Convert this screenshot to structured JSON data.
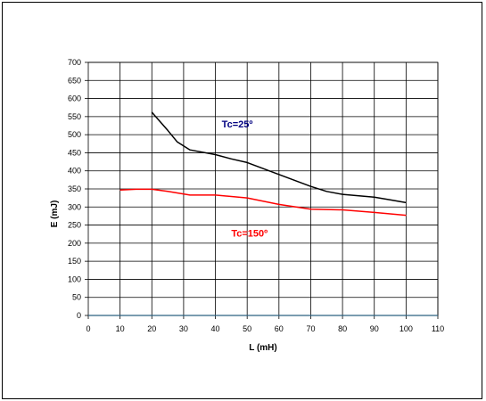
{
  "chart_data": {
    "type": "line",
    "xlabel": "L (mH)",
    "ylabel": "E (mJ)",
    "xlim": [
      0,
      110
    ],
    "ylim": [
      0,
      700
    ],
    "xticks": [
      0,
      10,
      20,
      30,
      40,
      50,
      60,
      70,
      80,
      90,
      100,
      110
    ],
    "yticks": [
      0,
      50,
      100,
      150,
      200,
      250,
      300,
      350,
      400,
      450,
      500,
      550,
      600,
      650,
      700
    ],
    "grid": true,
    "legend": "none",
    "series": [
      {
        "name": "Tc=25º",
        "color": "#000000",
        "x": [
          20,
          25,
          28,
          32,
          40,
          45,
          50,
          60,
          70,
          75,
          80,
          90,
          95,
          100
        ],
        "y": [
          562,
          512,
          480,
          458,
          445,
          433,
          423,
          390,
          357,
          343,
          335,
          327,
          320,
          312
        ]
      },
      {
        "name": "Tc=150º",
        "color": "#ff0000",
        "x": [
          10,
          15,
          20,
          25,
          32,
          40,
          50,
          60,
          70,
          80,
          90,
          100
        ],
        "y": [
          347,
          349,
          349,
          343,
          333,
          333,
          325,
          307,
          294,
          292,
          285,
          277
        ]
      }
    ],
    "annotations": [
      {
        "text": "Tc=25º",
        "color": "#000080",
        "x": 42,
        "y": 530
      },
      {
        "text": "Tc=150º",
        "color": "#ff0000",
        "x": 45,
        "y": 228
      }
    ]
  }
}
